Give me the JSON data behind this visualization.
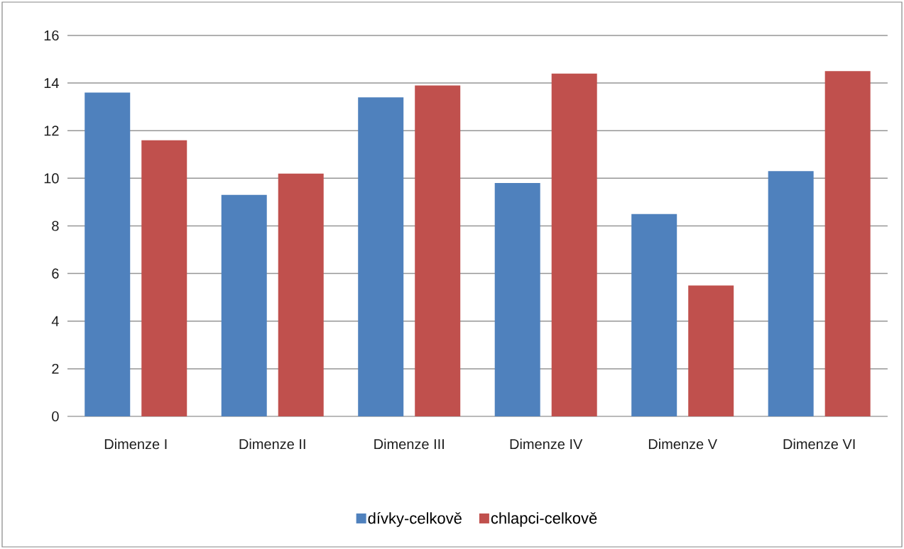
{
  "chart_data": {
    "type": "bar",
    "categories": [
      "Dimenze I",
      "Dimenze II",
      "Dimenze III",
      "Dimenze IV",
      "Dimenze V",
      "Dimenze VI"
    ],
    "series": [
      {
        "name": "dívky-celkově",
        "color": "#4f81bd",
        "values": [
          13.6,
          9.3,
          13.4,
          9.8,
          8.5,
          10.3
        ]
      },
      {
        "name": "chlapci-celkově",
        "color": "#c0504d",
        "values": [
          11.6,
          10.2,
          13.9,
          14.4,
          5.5,
          14.5
        ]
      }
    ],
    "ylim": [
      0,
      16
    ],
    "yticks": [
      0,
      2,
      4,
      6,
      8,
      10,
      12,
      14,
      16
    ],
    "grid": "y",
    "legend": "bottom"
  }
}
